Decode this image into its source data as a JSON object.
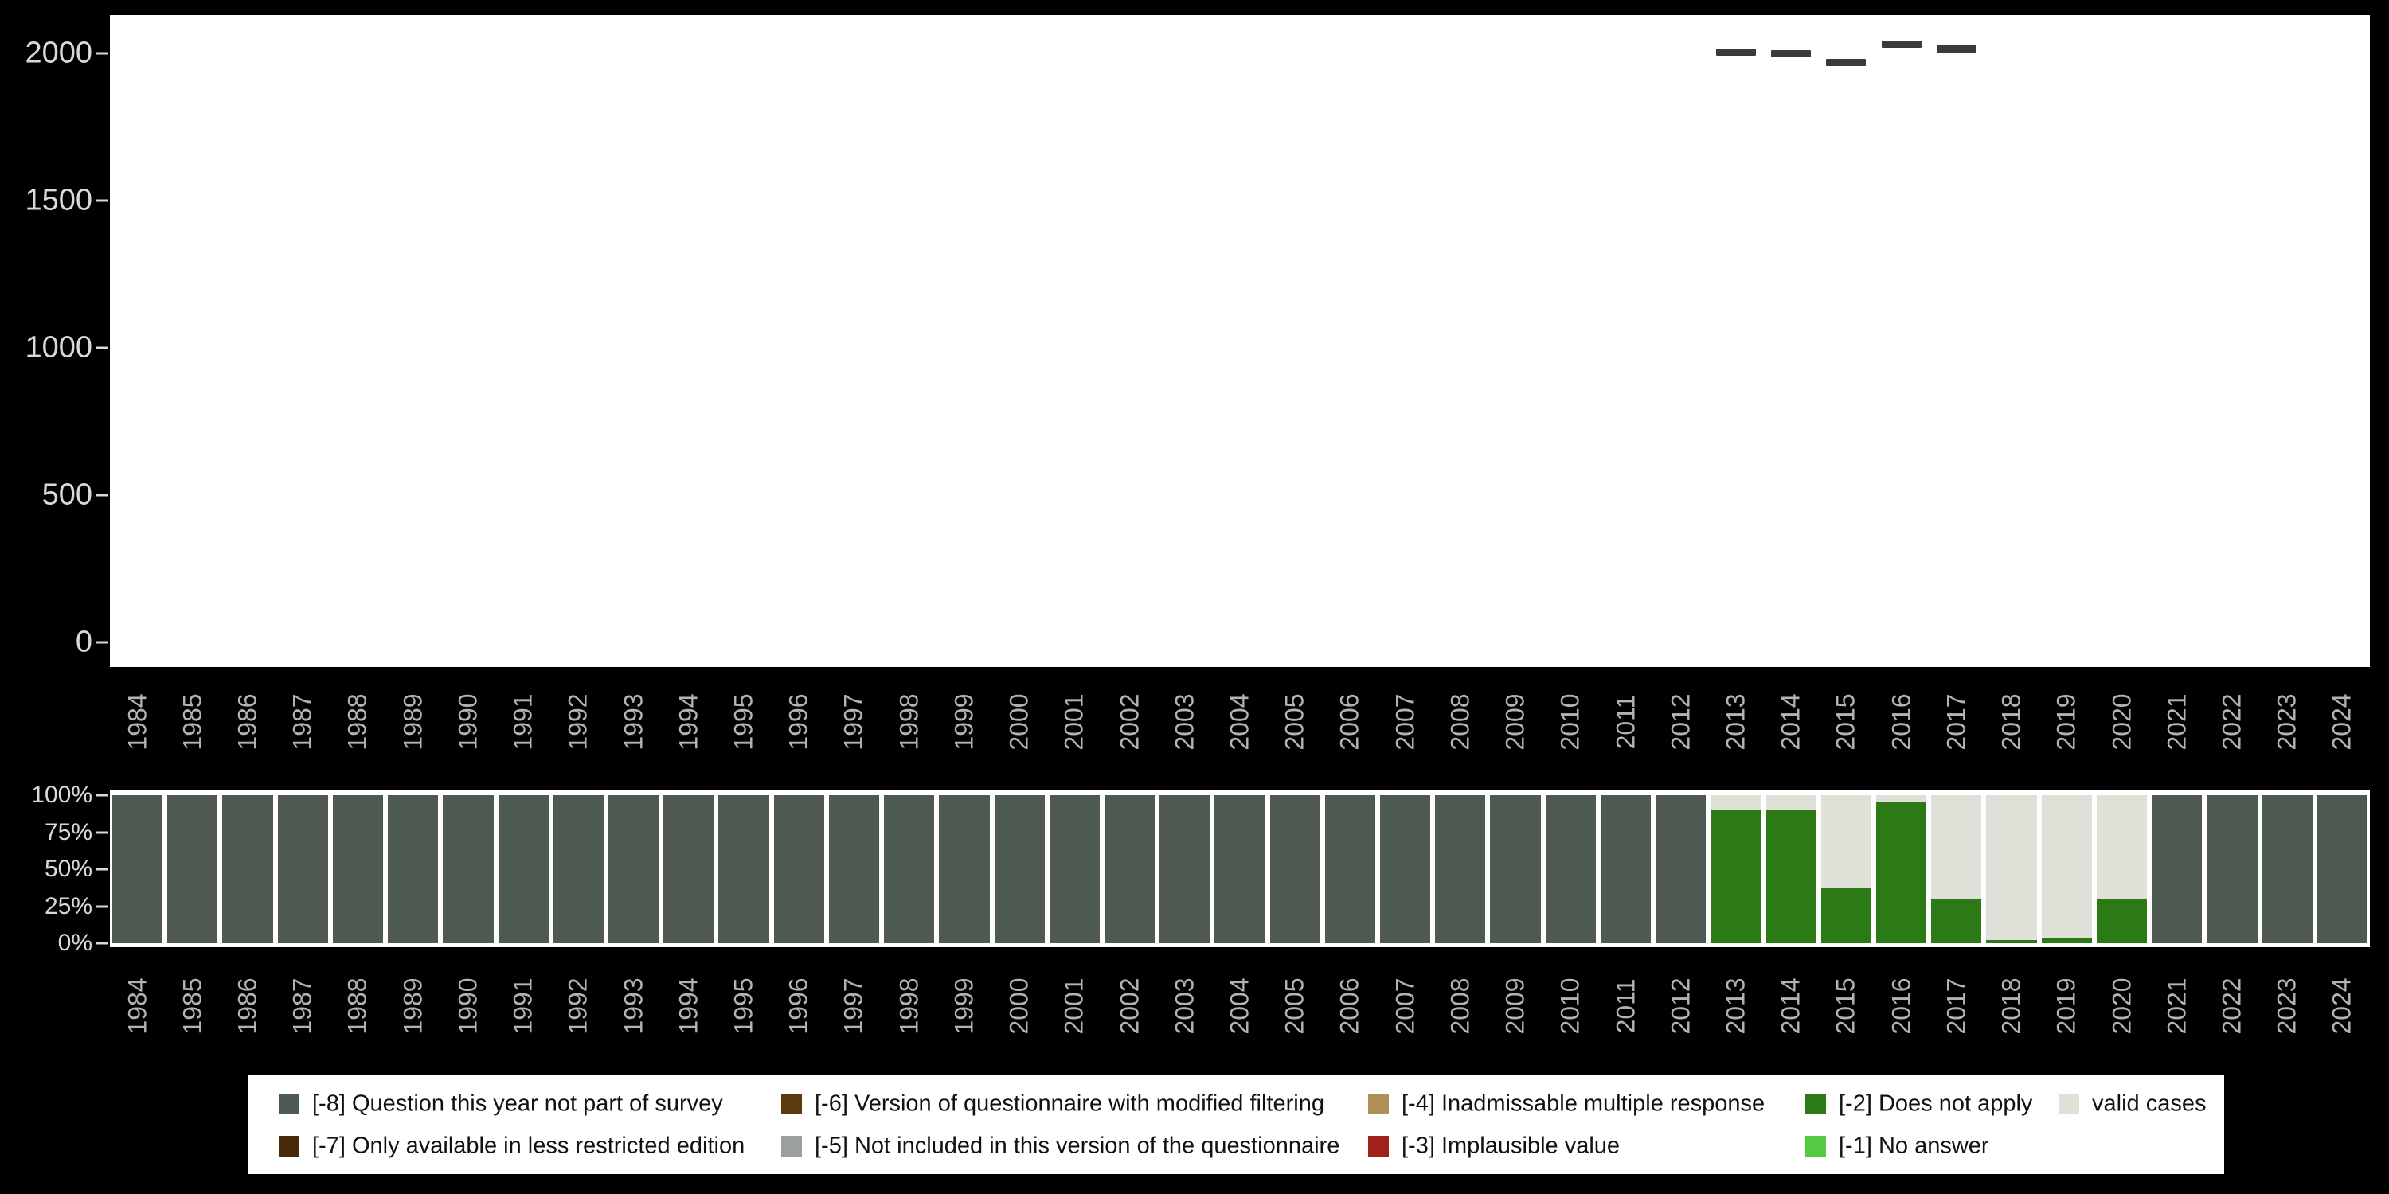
{
  "colors": {
    "background": "#000000",
    "panel": "#ffffff",
    "axis_text": "#d9d9d9",
    "year_text": "#b3b3b3",
    "legend_text": "#111111",
    "count_dash": "#3a3a3a"
  },
  "legend": {
    "items": [
      {
        "key": "m8",
        "label": "[-8] Question this year not part of survey",
        "color": "#4e5a51",
        "row": 1,
        "col": 1
      },
      {
        "key": "m7",
        "label": "[-7] Only available in less restricted edition",
        "color": "#47290c",
        "row": 2,
        "col": 1
      },
      {
        "key": "m6",
        "label": "[-6] Version of questionnaire with modified filtering",
        "color": "#5a3c11",
        "row": 1,
        "col": 2
      },
      {
        "key": "m5",
        "label": "[-5] Not included in this version of the questionnaire",
        "color": "#9aa09c",
        "row": 2,
        "col": 2
      },
      {
        "key": "m4",
        "label": "[-4] Inadmissable multiple response",
        "color": "#b0915a",
        "row": 1,
        "col": 3
      },
      {
        "key": "m3",
        "label": "[-3] Implausible value",
        "color": "#a02117",
        "row": 2,
        "col": 3
      },
      {
        "key": "m2",
        "label": "[-2] Does not apply",
        "color": "#2c7a16",
        "row": 1,
        "col": 4
      },
      {
        "key": "m1",
        "label": "[-1] No answer",
        "color": "#55cb44",
        "row": 2,
        "col": 4
      },
      {
        "key": "valid",
        "label": "valid cases",
        "color": "#dfe0d8",
        "row": 1,
        "col": 5
      }
    ]
  },
  "chart_data": [
    {
      "type": "bar",
      "title": "",
      "xlabel": "",
      "ylabel": "",
      "ylim": [
        0,
        2050
      ],
      "grid": false,
      "yticks": [
        {
          "label": "2000",
          "value": 2000
        },
        {
          "label": "1500",
          "value": 1500
        },
        {
          "label": "1000",
          "value": 1000
        },
        {
          "label": "500",
          "value": 500
        },
        {
          "label": "0",
          "value": 0
        }
      ],
      "x": [
        1984,
        1985,
        1986,
        1987,
        1988,
        1989,
        1990,
        1991,
        1992,
        1993,
        1994,
        1995,
        1996,
        1997,
        1998,
        1999,
        2000,
        2001,
        2002,
        2003,
        2004,
        2005,
        2006,
        2007,
        2008,
        2009,
        2010,
        2011,
        2012,
        2013,
        2014,
        2015,
        2016,
        2017,
        2018,
        2019,
        2020,
        2021,
        2022,
        2023,
        2024
      ],
      "values": [
        0,
        0,
        0,
        0,
        0,
        0,
        0,
        0,
        0,
        0,
        0,
        0,
        0,
        0,
        0,
        0,
        0,
        0,
        0,
        0,
        0,
        0,
        0,
        0,
        0,
        0,
        0,
        0,
        0,
        2005,
        2000,
        1970,
        2030,
        2015,
        0,
        0,
        0,
        0,
        0,
        0,
        0
      ]
    },
    {
      "type": "bar",
      "stacked": true,
      "percent": true,
      "title": "",
      "xlabel": "",
      "ylabel": "",
      "ylim": [
        0,
        100
      ],
      "legend_position": "bottom",
      "yticks": [
        {
          "label": "100%",
          "value": 100
        },
        {
          "label": "75%",
          "value": 75
        },
        {
          "label": "50%",
          "value": 50
        },
        {
          "label": "25%",
          "value": 25
        },
        {
          "label": "0%",
          "value": 0
        }
      ],
      "categories": [
        1984,
        1985,
        1986,
        1987,
        1988,
        1989,
        1990,
        1991,
        1992,
        1993,
        1994,
        1995,
        1996,
        1997,
        1998,
        1999,
        2000,
        2001,
        2002,
        2003,
        2004,
        2005,
        2006,
        2007,
        2008,
        2009,
        2010,
        2011,
        2012,
        2013,
        2014,
        2015,
        2016,
        2017,
        2018,
        2019,
        2020,
        2021,
        2022,
        2023,
        2024
      ],
      "series": [
        {
          "name": "[-8] Question this year not part of survey",
          "key": "m8",
          "values": [
            100,
            100,
            100,
            100,
            100,
            100,
            100,
            100,
            100,
            100,
            100,
            100,
            100,
            100,
            100,
            100,
            100,
            100,
            100,
            100,
            100,
            100,
            100,
            100,
            100,
            100,
            100,
            100,
            100,
            0,
            0,
            0,
            0,
            0,
            0,
            0,
            0,
            100,
            100,
            100,
            100
          ]
        },
        {
          "name": "[-2] Does not apply",
          "key": "m2",
          "values": [
            0,
            0,
            0,
            0,
            0,
            0,
            0,
            0,
            0,
            0,
            0,
            0,
            0,
            0,
            0,
            0,
            0,
            0,
            0,
            0,
            0,
            0,
            0,
            0,
            0,
            0,
            0,
            0,
            0,
            90,
            90,
            37,
            95,
            30,
            2,
            3,
            30,
            0,
            0,
            0,
            0
          ]
        },
        {
          "name": "valid cases",
          "key": "valid",
          "values": [
            0,
            0,
            0,
            0,
            0,
            0,
            0,
            0,
            0,
            0,
            0,
            0,
            0,
            0,
            0,
            0,
            0,
            0,
            0,
            0,
            0,
            0,
            0,
            0,
            0,
            0,
            0,
            0,
            0,
            10,
            10,
            63,
            5,
            70,
            98,
            97,
            70,
            0,
            0,
            0,
            0
          ]
        }
      ]
    }
  ]
}
